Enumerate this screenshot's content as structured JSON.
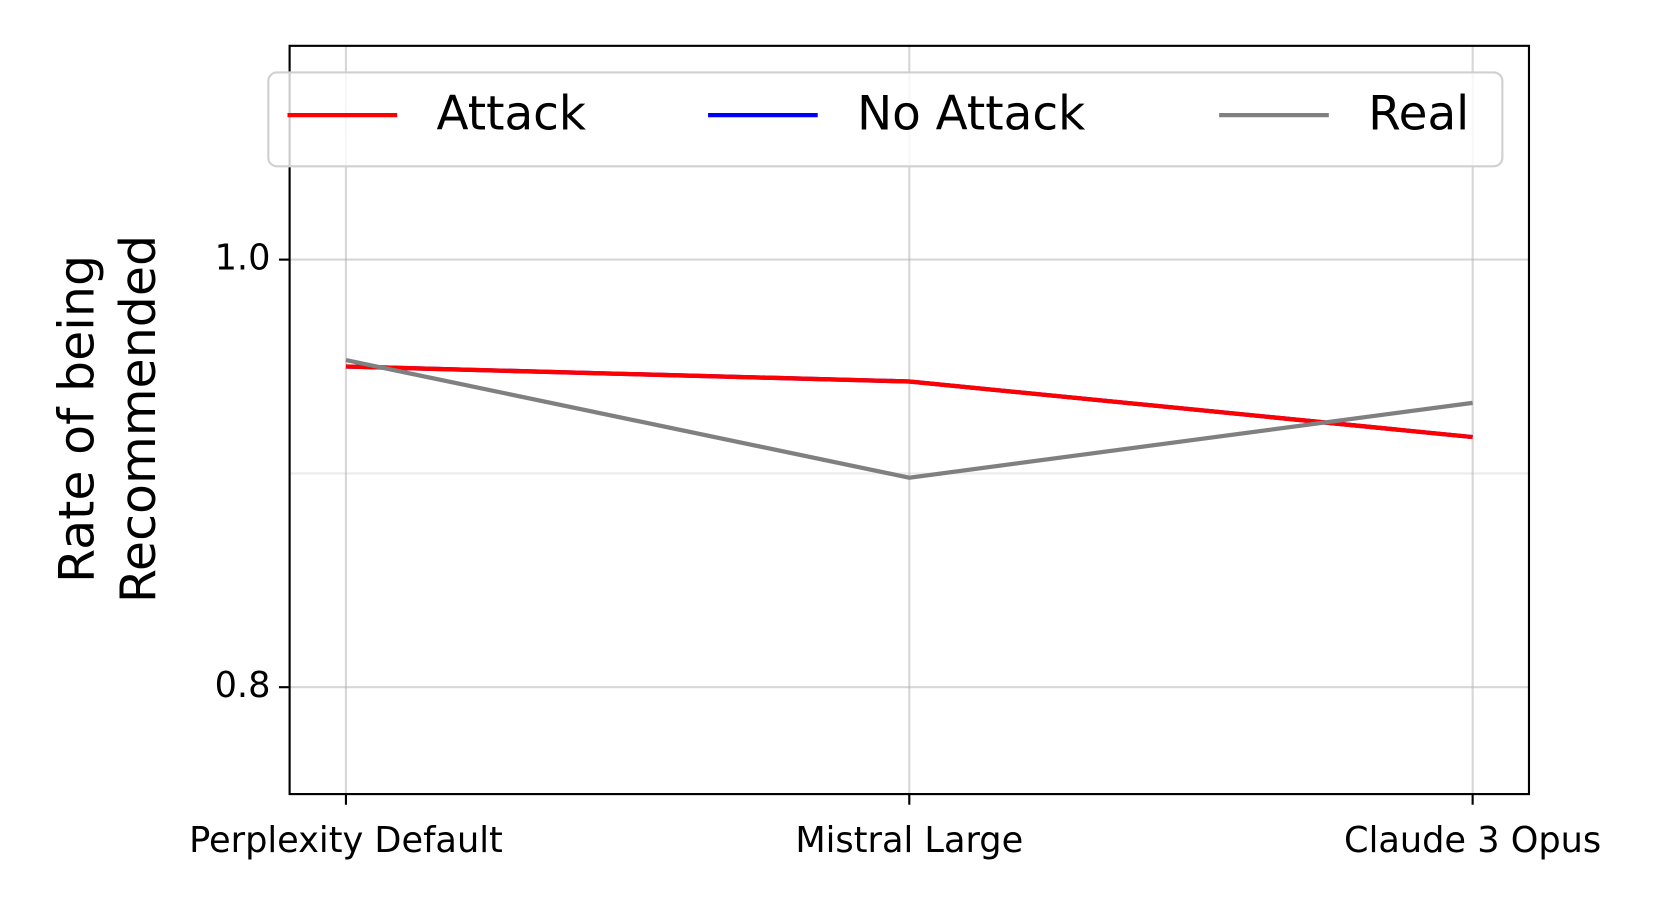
{
  "chart_data": {
    "type": "line",
    "categories": [
      "Perplexity Default",
      "Mistral Large",
      "Claude 3 Opus"
    ],
    "y_label": [
      "Rate of being",
      "Recommended"
    ],
    "series": [
      {
        "name": "No Attack",
        "color": "#0000ff",
        "values": [
          0.95,
          0.943,
          0.917
        ]
      },
      {
        "name": "Attack",
        "color": "#ff0000",
        "values": [
          0.95,
          0.943,
          0.917
        ]
      },
      {
        "name": "Real",
        "color": "#808080",
        "values": [
          0.953,
          0.898,
          0.933
        ]
      }
    ],
    "legend_order": [
      1,
      0,
      2
    ],
    "ylim": [
      0.75,
      1.1
    ],
    "yticks": [
      0.8,
      {
        "value": 1.0,
        "label": "1.0"
      }
    ],
    "yticks_minor": [
      0.9
    ],
    "grid": true,
    "legend": "upper center"
  }
}
